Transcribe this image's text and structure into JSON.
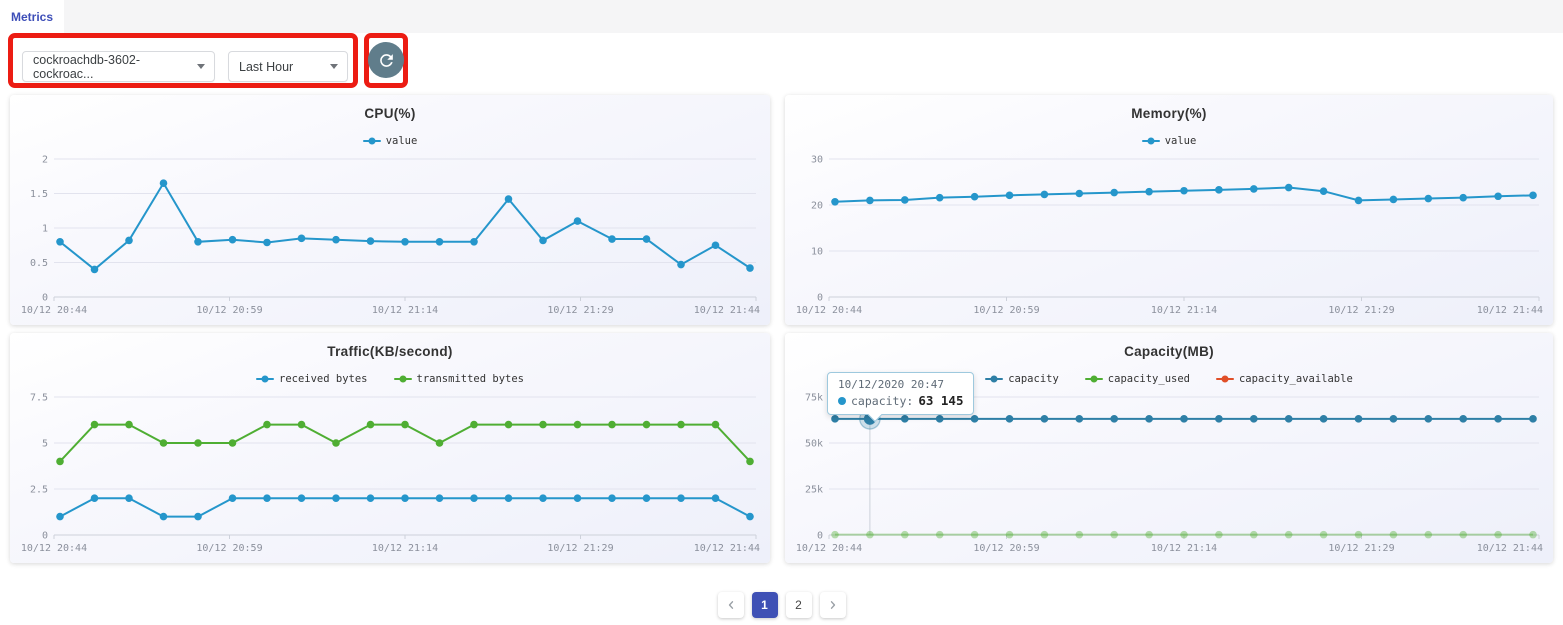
{
  "tab_bar": {
    "active_tab": "Metrics"
  },
  "toolbar": {
    "cluster_dropdown": {
      "value": "cockroachdb-3602-cockroac...",
      "icon": "chevron-down-icon"
    },
    "time_range_dropdown": {
      "value": "Last Hour",
      "icon": "chevron-down-icon"
    },
    "refresh_button": {
      "icon": "refresh-icon",
      "color": "#607d8b"
    }
  },
  "annotations": {
    "color": "#ec1c13",
    "boxes": [
      "dropdown-group",
      "refresh-button"
    ]
  },
  "colors": {
    "accent": "#3f51b5",
    "tab_text": "#3d4eb8",
    "series_blue": "#2596cb",
    "series_green": "#4fae33",
    "series_orange": "#e04f28",
    "capacity_blue": "#2e7fa6"
  },
  "chart_data": [
    {
      "type": "line",
      "title": "CPU(%)",
      "x_tick_labels": [
        "10/12 20:44",
        "10/12 20:59",
        "10/12 21:14",
        "10/12 21:29",
        "10/12 21:44"
      ],
      "y_tick_labels": [
        "0",
        "0.5",
        "1",
        "1.5",
        "2"
      ],
      "y_tick_values": [
        0,
        0.5,
        1,
        1.5,
        2
      ],
      "legend_position": "top",
      "grid": true,
      "series": [
        {
          "name": "value",
          "color": "#2596cb",
          "values": [
            0.8,
            0.4,
            0.82,
            1.65,
            0.8,
            0.83,
            0.79,
            0.85,
            0.83,
            0.81,
            0.8,
            0.8,
            0.8,
            1.42,
            0.82,
            1.1,
            0.84,
            0.84,
            0.47,
            0.75,
            0.42
          ]
        }
      ]
    },
    {
      "type": "line",
      "title": "Memory(%)",
      "x_tick_labels": [
        "10/12 20:44",
        "10/12 20:59",
        "10/12 21:14",
        "10/12 21:29",
        "10/12 21:44"
      ],
      "y_tick_labels": [
        "0",
        "10",
        "20",
        "30"
      ],
      "y_tick_values": [
        0,
        10,
        20,
        30
      ],
      "legend_position": "top",
      "grid": true,
      "series": [
        {
          "name": "value",
          "color": "#2596cb",
          "values": [
            20.7,
            21.0,
            21.1,
            21.6,
            21.8,
            22.1,
            22.3,
            22.5,
            22.7,
            22.9,
            23.1,
            23.3,
            23.5,
            23.8,
            23.0,
            21.0,
            21.2,
            21.4,
            21.6,
            21.9,
            22.1
          ]
        }
      ]
    },
    {
      "type": "line",
      "title": "Traffic(KB/second)",
      "x_tick_labels": [
        "10/12 20:44",
        "10/12 20:59",
        "10/12 21:14",
        "10/12 21:29",
        "10/12 21:44"
      ],
      "y_tick_labels": [
        "0",
        "2.5",
        "5",
        "7.5"
      ],
      "y_tick_values": [
        0,
        2.5,
        5,
        7.5
      ],
      "legend_position": "top",
      "grid": true,
      "series": [
        {
          "name": "received bytes",
          "color": "#2596cb",
          "values": [
            1,
            2,
            2,
            1,
            1,
            2,
            2,
            2,
            2,
            2,
            2,
            2,
            2,
            2,
            2,
            2,
            2,
            2,
            2,
            2,
            1
          ]
        },
        {
          "name": "transmitted bytes",
          "color": "#4fae33",
          "values": [
            4,
            6,
            6,
            5,
            5,
            5,
            6,
            6,
            5,
            6,
            6,
            5,
            6,
            6,
            6,
            6,
            6,
            6,
            6,
            6,
            4
          ]
        }
      ]
    },
    {
      "type": "line",
      "title": "Capacity(MB)",
      "x_tick_labels": [
        "10/12 20:44",
        "10/12 20:59",
        "10/12 21:14",
        "10/12 21:29",
        "10/12 21:44"
      ],
      "y_tick_labels": [
        "0",
        "25k",
        "50k",
        "75k"
      ],
      "y_tick_values": [
        0,
        25000,
        50000,
        75000
      ],
      "legend_position": "top",
      "grid": true,
      "series": [
        {
          "name": "capacity",
          "color": "#2e7fa6",
          "values": [
            63145,
            63145,
            63145,
            63145,
            63145,
            63145,
            63145,
            63145,
            63145,
            63145,
            63145,
            63145,
            63145,
            63145,
            63145,
            63145,
            63145,
            63145,
            63145,
            63145,
            63145
          ]
        },
        {
          "name": "capacity_used",
          "color": "#4fae33",
          "faded": true,
          "values": [
            200,
            200,
            200,
            200,
            200,
            200,
            200,
            200,
            200,
            200,
            200,
            200,
            200,
            200,
            200,
            200,
            200,
            200,
            200,
            200,
            200
          ]
        },
        {
          "name": "capacity_available",
          "color": "#e04f28",
          "values": []
        }
      ],
      "highlight": {
        "series": "capacity",
        "index": 1
      },
      "tooltip": {
        "date": "10/12/2020 20:47",
        "label": "capacity:",
        "value": "63 145",
        "dot_color": "#2596cb"
      }
    }
  ],
  "pagination": {
    "prev_icon": "chevron-left-icon",
    "next_icon": "chevron-right-icon",
    "pages": [
      "1",
      "2"
    ],
    "active_page": "1"
  }
}
